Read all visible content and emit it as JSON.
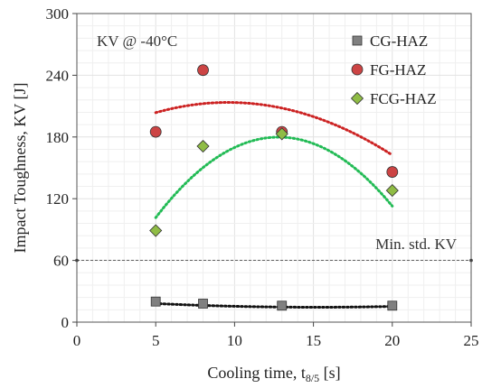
{
  "chart_data": {
    "type": "scatter",
    "title": "",
    "xlabel_main": "Cooling time, t",
    "xlabel_sub": "8/5",
    "xlabel_tail": " [s]",
    "ylabel": "Impact Toughness, KV [J]",
    "xlim": [
      0,
      25
    ],
    "ylim": [
      0,
      300
    ],
    "x_ticks": [
      0,
      5,
      10,
      15,
      20,
      25
    ],
    "y_ticks": [
      0,
      60,
      120,
      180,
      240,
      300
    ],
    "x_tick_labels": [
      "0",
      "5",
      "10",
      "15",
      "20",
      "25"
    ],
    "y_tick_labels": [
      "0",
      "60",
      "120",
      "180",
      "240",
      "300"
    ],
    "grid": true,
    "legend_position": "top-right",
    "annotation": "KV @ -40°C",
    "reference_line": {
      "label": "Min. std. KV",
      "y": 60
    },
    "series": [
      {
        "name": "CG-HAZ",
        "marker": "square",
        "color": "#808080",
        "trend_color": "#111111",
        "x": [
          5,
          8,
          13,
          20
        ],
        "y": [
          20,
          18,
          16,
          16
        ],
        "trend": {
          "x0": 5,
          "x1": 20,
          "coef": [
            22.5,
            -1.06,
            0.035
          ]
        }
      },
      {
        "name": "FG-HAZ",
        "marker": "circle",
        "color": "#cc4444",
        "trend_color": "#cc2222",
        "x": [
          5,
          8,
          13,
          20
        ],
        "y": [
          185,
          245,
          185,
          146
        ],
        "trend": {
          "x0": 5,
          "x1": 20,
          "coef": [
            170.2,
            9.05,
            -0.472
          ]
        }
      },
      {
        "name": "FCG-HAZ",
        "marker": "diamond",
        "color": "#8fbc45",
        "trend_color": "#22bb55",
        "x": [
          5,
          8,
          13,
          20
        ],
        "y": [
          89,
          171,
          183,
          128
        ],
        "trend": {
          "x0": 5,
          "x1": 20,
          "coef": [
            -31.2,
            33.0,
            -1.29
          ]
        }
      }
    ]
  }
}
